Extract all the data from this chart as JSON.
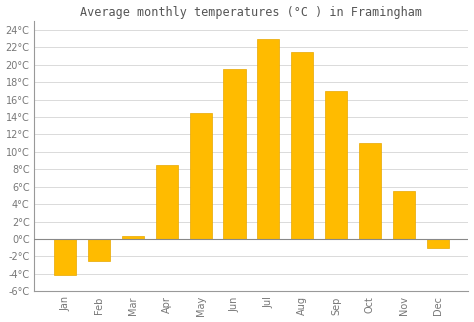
{
  "title": "Average monthly temperatures (°C ) in Framingham",
  "months": [
    "Jan",
    "Feb",
    "Mar",
    "Apr",
    "May",
    "Jun",
    "Jul",
    "Aug",
    "Sep",
    "Oct",
    "Nov",
    "Dec"
  ],
  "values": [
    -4.1,
    -2.5,
    0.3,
    8.5,
    14.5,
    19.5,
    23.0,
    21.5,
    17.0,
    11.0,
    5.5,
    -1.0
  ],
  "bar_color": "#FFBB00",
  "bar_edge_color": "#E8A800",
  "background_color": "#FFFFFF",
  "grid_color": "#CCCCCC",
  "ylim": [
    -6,
    25
  ],
  "yticks": [
    -6,
    -4,
    -2,
    0,
    2,
    4,
    6,
    8,
    10,
    12,
    14,
    16,
    18,
    20,
    22,
    24
  ],
  "title_fontsize": 8.5,
  "tick_fontsize": 7,
  "zero_line_color": "#888888",
  "axis_color": "#999999",
  "text_color": "#777777"
}
